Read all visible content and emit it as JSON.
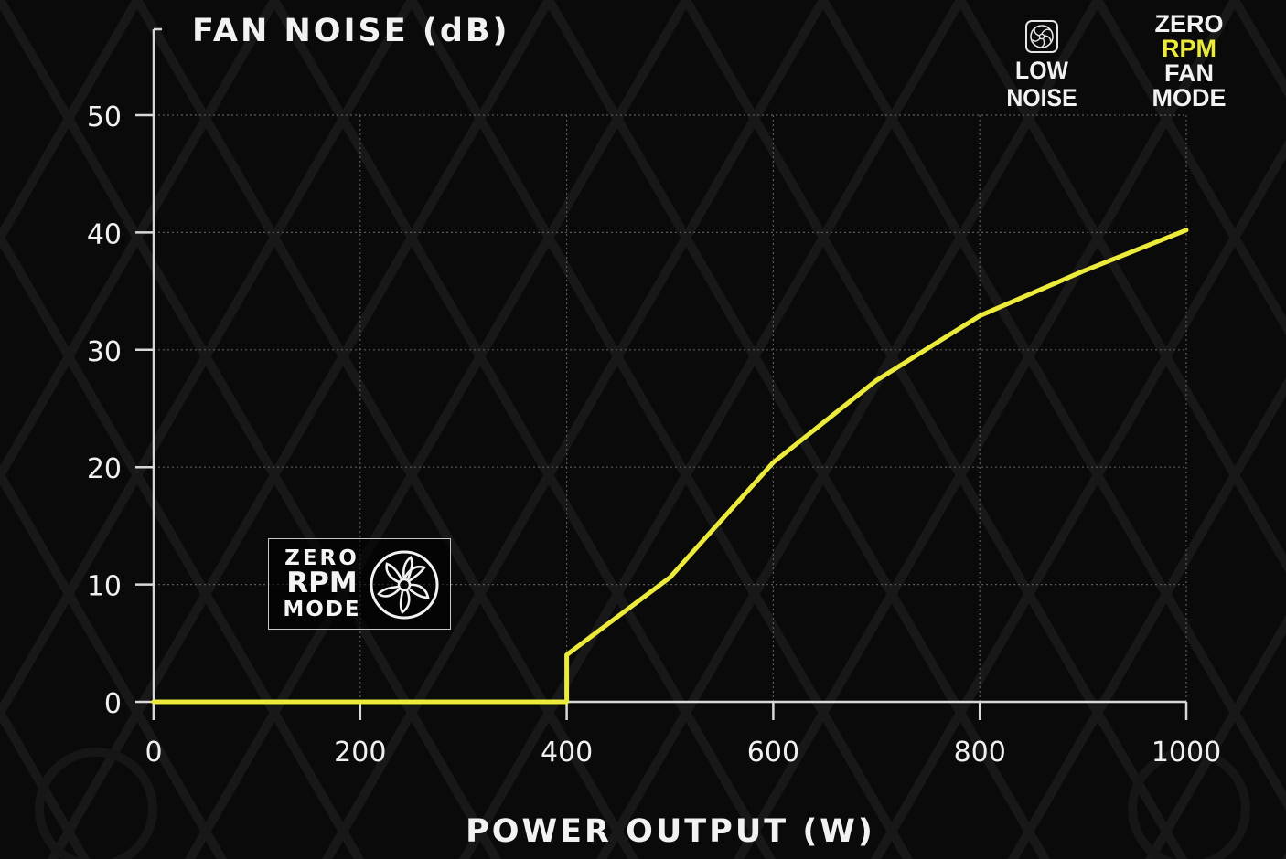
{
  "chart_data": {
    "type": "line",
    "title": "FAN NOISE (dB)",
    "xlabel": "POWER OUTPUT (W)",
    "ylabel": "",
    "xlim": [
      0,
      1000
    ],
    "ylim": [
      0,
      50
    ],
    "x_ticks": [
      "0",
      "200",
      "400",
      "600",
      "800",
      "1000"
    ],
    "y_ticks": [
      "0",
      "10",
      "20",
      "30",
      "40",
      "50"
    ],
    "grid": true,
    "series": [
      {
        "x": [
          0,
          400,
          400,
          500,
          600,
          700,
          800,
          900,
          1000
        ],
        "y": [
          0,
          0,
          4,
          10.6,
          20.4,
          27.4,
          32.9,
          36.7,
          40.2
        ]
      }
    ],
    "line_color": "#ecea3a",
    "axis_color": "#d9d9d9",
    "grid_color": "#5a5a5a"
  },
  "legend": {
    "low_noise_label": "LOW NOISE",
    "low_noise_icon": "fan-icon",
    "zero_rpm_line1": "ZERO",
    "zero_rpm_line2": "RPM",
    "zero_rpm_line3": "FAN MODE"
  },
  "badge": {
    "line1": "ZERO",
    "line2": "RPM",
    "line3": "MODE",
    "icon": "fan-icon"
  }
}
